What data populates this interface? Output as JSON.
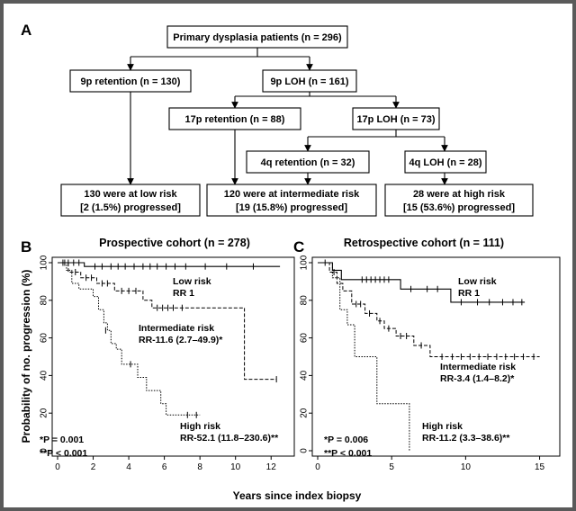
{
  "panel_labels": {
    "a": "A",
    "b": "B",
    "c": "C"
  },
  "flowchart": {
    "root": "Primary dysplasia patients (n = 296)",
    "p9_retention": "9p retention (n = 130)",
    "p9_loh": "9p LOH (n = 161)",
    "p17_retention": "17p retention (n = 88)",
    "p17_loh": "17p LOH (n = 73)",
    "q4_retention": "4q retention (n = 32)",
    "q4_loh": "4q LOH (n = 28)",
    "low_line1": "130 were at low risk",
    "low_line2": "[2 (1.5%) progressed]",
    "int_line1": "120 were at intermediate risk",
    "int_line2": "[19 (15.8%) progressed]",
    "high_line1": "28 were at high risk",
    "high_line2": "[15 (53.6%) progressed]"
  },
  "shared": {
    "ylabel": "Probability of no. progression (%)",
    "xlabel": "Years since index biopsy"
  },
  "chart_data": [
    {
      "type": "line",
      "title": "Prospective cohort (n = 278)",
      "xlabel": "Years since index biopsy",
      "ylabel": "Probability of no. progression (%)",
      "xlim": [
        0,
        13
      ],
      "ylim": [
        0,
        100
      ],
      "xticks": [
        0,
        2,
        4,
        6,
        8,
        10,
        12
      ],
      "yticks": [
        0,
        20,
        40,
        60,
        80,
        100
      ],
      "series": [
        {
          "name": "Low risk",
          "style": "solid",
          "steps": [
            [
              0,
              100
            ],
            [
              1.5,
              100
            ],
            [
              1.5,
              98
            ],
            [
              12.5,
              98
            ]
          ],
          "censors": [
            [
              0.3,
              100
            ],
            [
              0.6,
              100
            ],
            [
              0.9,
              100
            ],
            [
              1.2,
              100
            ],
            [
              2.1,
              98
            ],
            [
              2.5,
              98
            ],
            [
              3,
              98
            ],
            [
              3.4,
              98
            ],
            [
              3.8,
              98
            ],
            [
              4.3,
              98
            ],
            [
              4.8,
              98
            ],
            [
              5.2,
              98
            ],
            [
              5.6,
              98
            ],
            [
              6.1,
              98
            ],
            [
              6.6,
              98
            ],
            [
              7.2,
              98
            ],
            [
              8.3,
              98
            ],
            [
              9.5,
              98
            ],
            [
              11,
              98
            ]
          ],
          "labels": [
            "Low risk",
            "RR 1"
          ]
        },
        {
          "name": "Intermediate risk",
          "style": "dashed",
          "steps": [
            [
              0,
              100
            ],
            [
              0.6,
              100
            ],
            [
              0.6,
              95
            ],
            [
              1.3,
              95
            ],
            [
              1.3,
              92
            ],
            [
              2.2,
              92
            ],
            [
              2.2,
              89
            ],
            [
              3.2,
              89
            ],
            [
              3.2,
              85
            ],
            [
              4.8,
              85
            ],
            [
              4.8,
              80
            ],
            [
              5.3,
              80
            ],
            [
              5.3,
              76
            ],
            [
              10.5,
              76
            ],
            [
              10.5,
              38
            ],
            [
              12.3,
              38
            ]
          ],
          "censors": [
            [
              0.4,
              100
            ],
            [
              1,
              95
            ],
            [
              1.6,
              92
            ],
            [
              1.9,
              92
            ],
            [
              2.5,
              89
            ],
            [
              2.8,
              89
            ],
            [
              3.6,
              85
            ],
            [
              4,
              85
            ],
            [
              4.4,
              85
            ],
            [
              5.6,
              76
            ],
            [
              5.9,
              76
            ],
            [
              6.2,
              76
            ],
            [
              6.5,
              76
            ],
            [
              7,
              76
            ],
            [
              12.3,
              38
            ]
          ],
          "labels": [
            "Intermediate risk",
            "RR-11.6 (2.7–49.9)*"
          ]
        },
        {
          "name": "High risk",
          "style": "dotted",
          "steps": [
            [
              0,
              100
            ],
            [
              0.5,
              100
            ],
            [
              0.5,
              96
            ],
            [
              0.8,
              96
            ],
            [
              0.8,
              89
            ],
            [
              1.2,
              89
            ],
            [
              1.2,
              86
            ],
            [
              2,
              86
            ],
            [
              2,
              82
            ],
            [
              2.3,
              82
            ],
            [
              2.3,
              75
            ],
            [
              2.6,
              75
            ],
            [
              2.6,
              68
            ],
            [
              2.8,
              68
            ],
            [
              2.8,
              64
            ],
            [
              3,
              64
            ],
            [
              3,
              57
            ],
            [
              3.3,
              57
            ],
            [
              3.3,
              54
            ],
            [
              3.6,
              54
            ],
            [
              3.6,
              46
            ],
            [
              4.5,
              46
            ],
            [
              4.5,
              39
            ],
            [
              5,
              39
            ],
            [
              5,
              32
            ],
            [
              5.8,
              32
            ],
            [
              5.8,
              25
            ],
            [
              6.1,
              25
            ],
            [
              6.1,
              19
            ],
            [
              8,
              19
            ]
          ],
          "censors": [
            [
              2.7,
              64
            ],
            [
              4.1,
              46
            ],
            [
              7.3,
              19
            ],
            [
              7.8,
              19
            ]
          ],
          "labels": [
            "High risk",
            "RR-52.1 (11.8–230.6)**"
          ]
        }
      ],
      "stats": [
        "*P = 0.001",
        "**P < 0.001"
      ]
    },
    {
      "type": "line",
      "title": "Retrospective cohort (n = 111)",
      "xlabel": "Years since index biopsy",
      "ylabel": "Probability of no. progression (%)",
      "xlim": [
        0,
        16
      ],
      "ylim": [
        0,
        100
      ],
      "xticks": [
        0,
        5,
        10,
        15
      ],
      "yticks": [
        0,
        20,
        40,
        60,
        80,
        100
      ],
      "series": [
        {
          "name": "Low risk",
          "style": "solid",
          "steps": [
            [
              0,
              100
            ],
            [
              1,
              100
            ],
            [
              1,
              96
            ],
            [
              1.6,
              96
            ],
            [
              1.6,
              91
            ],
            [
              5.6,
              91
            ],
            [
              5.6,
              86
            ],
            [
              9,
              86
            ],
            [
              9,
              79
            ],
            [
              14,
              79
            ]
          ],
          "censors": [
            [
              0.5,
              100
            ],
            [
              3,
              91
            ],
            [
              3.3,
              91
            ],
            [
              3.6,
              91
            ],
            [
              3.9,
              91
            ],
            [
              4.2,
              91
            ],
            [
              4.5,
              91
            ],
            [
              4.8,
              91
            ],
            [
              6.3,
              86
            ],
            [
              7.4,
              86
            ],
            [
              8.1,
              86
            ],
            [
              9.7,
              79
            ],
            [
              10.8,
              79
            ],
            [
              11.6,
              79
            ],
            [
              12.5,
              79
            ],
            [
              13.2,
              79
            ],
            [
              13.8,
              79
            ]
          ],
          "labels": [
            "Low risk",
            "RR 1"
          ]
        },
        {
          "name": "Intermediate risk",
          "style": "dashed",
          "steps": [
            [
              0,
              100
            ],
            [
              0.8,
              100
            ],
            [
              0.8,
              95
            ],
            [
              1.3,
              95
            ],
            [
              1.3,
              89
            ],
            [
              1.7,
              89
            ],
            [
              1.7,
              85
            ],
            [
              2.3,
              85
            ],
            [
              2.3,
              78
            ],
            [
              3.2,
              78
            ],
            [
              3.2,
              73
            ],
            [
              4,
              73
            ],
            [
              4,
              69
            ],
            [
              4.5,
              69
            ],
            [
              4.5,
              65
            ],
            [
              5.3,
              65
            ],
            [
              5.3,
              61
            ],
            [
              6.5,
              61
            ],
            [
              6.5,
              56
            ],
            [
              7.6,
              56
            ],
            [
              7.6,
              50
            ],
            [
              15,
              50
            ]
          ],
          "censors": [
            [
              1.1,
              95
            ],
            [
              2.6,
              78
            ],
            [
              2.9,
              78
            ],
            [
              3.5,
              73
            ],
            [
              4.2,
              69
            ],
            [
              4.8,
              65
            ],
            [
              5.6,
              61
            ],
            [
              6,
              61
            ],
            [
              7,
              56
            ],
            [
              8.4,
              50
            ],
            [
              9.1,
              50
            ],
            [
              9.7,
              50
            ],
            [
              10.3,
              50
            ],
            [
              10.9,
              50
            ],
            [
              11.5,
              50
            ],
            [
              12.1,
              50
            ],
            [
              12.7,
              50
            ],
            [
              13.3,
              50
            ],
            [
              13.9,
              50
            ],
            [
              14.6,
              50
            ]
          ],
          "labels": [
            "Intermediate risk",
            "RR-3.4 (1.4–8.2)*"
          ]
        },
        {
          "name": "High risk",
          "style": "dotted",
          "steps": [
            [
              0,
              100
            ],
            [
              1,
              100
            ],
            [
              1,
              92
            ],
            [
              1.5,
              92
            ],
            [
              1.5,
              75
            ],
            [
              2,
              75
            ],
            [
              2,
              67
            ],
            [
              2.5,
              67
            ],
            [
              2.5,
              50
            ],
            [
              4,
              50
            ],
            [
              4,
              25
            ],
            [
              6.2,
              25
            ],
            [
              6.2,
              0
            ]
          ],
          "censors": [],
          "labels": [
            "High risk",
            "RR-11.2 (3.3–38.6)**"
          ]
        }
      ],
      "stats": [
        "*P = 0.006",
        "**P < 0.001"
      ]
    }
  ]
}
